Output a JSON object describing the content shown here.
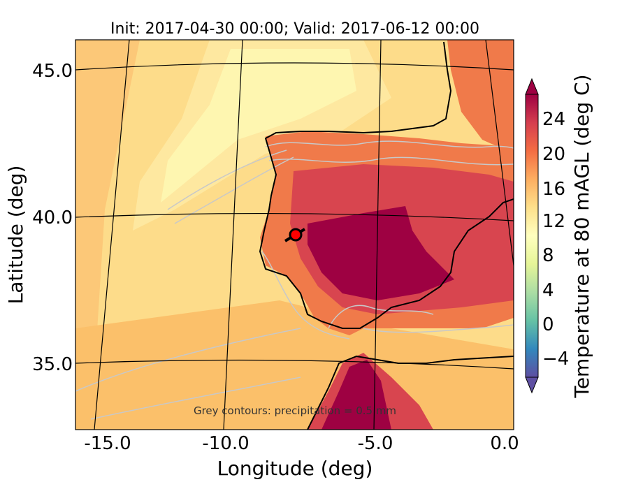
{
  "figure": {
    "title": "Init: 2017-04-30 00:00; Valid: 2017-06-12 00:00",
    "xlabel": "Longitude (deg)",
    "ylabel": "Latitude (deg)",
    "annotation": "Grey contours: precipitation  = 0.5 mm"
  },
  "map": {
    "x_ticks": [
      "-15.0",
      "-10.0",
      "-5.0",
      "0.0"
    ],
    "y_ticks": [
      "45.0",
      "40.0",
      "35.0"
    ],
    "colors": {
      "sea_offshore": "#fddc8a",
      "sea_cool_plume": "#fef6b0",
      "sea_warm": "#fbc06a",
      "land_warm": "#f07a4a",
      "land_hot": "#d8454f",
      "land_hottest": "#9e0142",
      "contour_grey": "#c8c8c8",
      "coastline": "#000000",
      "marker_fill": "#ff0000"
    }
  },
  "colorbar": {
    "label": "Temperature at 80 mAGL (deg C)",
    "ticks": [
      "24",
      "20",
      "16",
      "12",
      "8",
      "4",
      "0",
      "−4"
    ],
    "cmap": [
      "#5e4fa2",
      "#3288bd",
      "#66c2a5",
      "#abdda4",
      "#e6f598",
      "#ffffbf",
      "#fee08b",
      "#fdae61",
      "#f46d43",
      "#d53e4f",
      "#9e0142"
    ]
  }
}
